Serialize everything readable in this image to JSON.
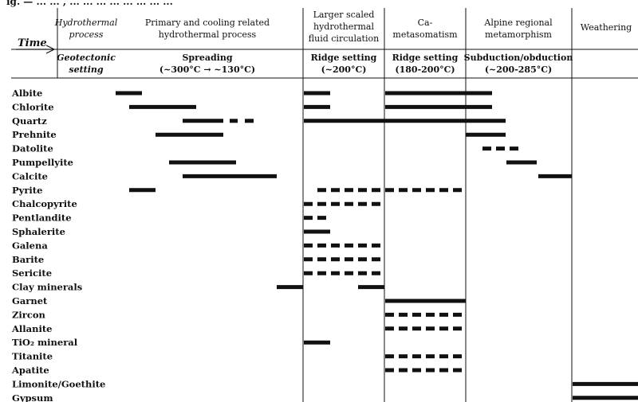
{
  "top_fragment": "ig. — ... ... , ... ... ... ... ... ... ... ...",
  "header": {
    "time_label": "Time",
    "columns": [
      {
        "key": "c1",
        "line1": "Hydrothermal",
        "line2": "process",
        "italic": true,
        "sub1": "Geotectonic",
        "sub2": "setting",
        "sub_italic": true
      },
      {
        "key": "c2",
        "line1": "Primary and cooling related",
        "line2": "hydrothermal process",
        "italic": false,
        "sub1": "Spreading",
        "sub2": "(~300°C → ~130°C)",
        "sub_italic": false
      },
      {
        "key": "c3",
        "line1": "Larger scaled",
        "line2": "hydrothermal",
        "line3": "fluid circulation",
        "italic": false,
        "sub1": "Ridge setting",
        "sub2": "(~200°C)",
        "sub_italic": false
      },
      {
        "key": "c4",
        "line1": "Ca-",
        "line2": "metasomatism",
        "italic": false,
        "sub1": "Ridge setting",
        "sub2": "(180-200°C)",
        "sub_italic": false
      },
      {
        "key": "c5",
        "line1": "Alpine regional",
        "line2": "metamorphism",
        "italic": false,
        "sub1": "Subduction/obduction",
        "sub2": "(~200-285°C)",
        "sub_italic": false
      },
      {
        "key": "c6",
        "line1": "Weathering",
        "italic": false
      }
    ]
  },
  "minerals": [
    {
      "name": "Albite",
      "bars": [
        [
          145,
          178,
          "s"
        ],
        [
          381,
          414,
          "s"
        ],
        [
          483,
          617,
          "s"
        ]
      ]
    },
    {
      "name": "Chlorite",
      "bars": [
        [
          162,
          246,
          "s"
        ],
        [
          381,
          414,
          "s"
        ],
        [
          483,
          617,
          "s"
        ]
      ]
    },
    {
      "name": "Quartz",
      "bars": [
        [
          229,
          280,
          "s"
        ],
        [
          288,
          298,
          "s"
        ],
        [
          307,
          318,
          "s"
        ],
        [
          381,
          634,
          "s"
        ]
      ]
    },
    {
      "name": "Prehnite",
      "bars": [
        [
          195,
          280,
          "s"
        ],
        [
          584,
          634,
          "s"
        ]
      ]
    },
    {
      "name": "Datolite",
      "bars": [
        [
          605,
          655,
          "d"
        ]
      ]
    },
    {
      "name": "Pumpellyite",
      "bars": [
        [
          212,
          296,
          "s"
        ],
        [
          635,
          673,
          "s"
        ]
      ]
    },
    {
      "name": "Calcite",
      "bars": [
        [
          229,
          347,
          "s"
        ],
        [
          675,
          717,
          "s"
        ]
      ]
    },
    {
      "name": "Pyrite",
      "bars": [
        [
          162,
          195,
          "s"
        ],
        [
          398,
          584,
          "d"
        ]
      ]
    },
    {
      "name": "Chalcopyrite",
      "bars": [
        [
          381,
          482,
          "d"
        ]
      ]
    },
    {
      "name": "Pentlandite",
      "bars": [
        [
          381,
          413,
          "d"
        ]
      ]
    },
    {
      "name": "Sphalerite",
      "bars": [
        [
          381,
          414,
          "s"
        ]
      ]
    },
    {
      "name": "Galena",
      "bars": [
        [
          381,
          482,
          "d"
        ]
      ]
    },
    {
      "name": "Barite",
      "bars": [
        [
          381,
          482,
          "d"
        ]
      ]
    },
    {
      "name": "Sericite",
      "bars": [
        [
          381,
          482,
          "d"
        ]
      ]
    },
    {
      "name": "Clay minerals",
      "bars": [
        [
          347,
          380,
          "s"
        ],
        [
          449,
          482,
          "s"
        ]
      ]
    },
    {
      "name": "Garnet",
      "bars": [
        [
          483,
          584,
          "s"
        ]
      ]
    },
    {
      "name": "Zircon",
      "bars": [
        [
          483,
          584,
          "d"
        ]
      ]
    },
    {
      "name": "Allanite",
      "bars": [
        [
          483,
          584,
          "d"
        ]
      ]
    },
    {
      "name": "TiO₂ mineral",
      "bars": [
        [
          381,
          414,
          "s"
        ]
      ]
    },
    {
      "name": "Titanite",
      "bars": [
        [
          483,
          584,
          "d"
        ]
      ]
    },
    {
      "name": "Apatite",
      "bars": [
        [
          483,
          584,
          "d"
        ]
      ]
    },
    {
      "name": "Limonite/Goethite",
      "bars": [
        [
          718,
          800,
          "s"
        ]
      ]
    },
    {
      "name": "Gypsum",
      "bars": [
        [
          718,
          800,
          "s"
        ]
      ]
    }
  ]
}
